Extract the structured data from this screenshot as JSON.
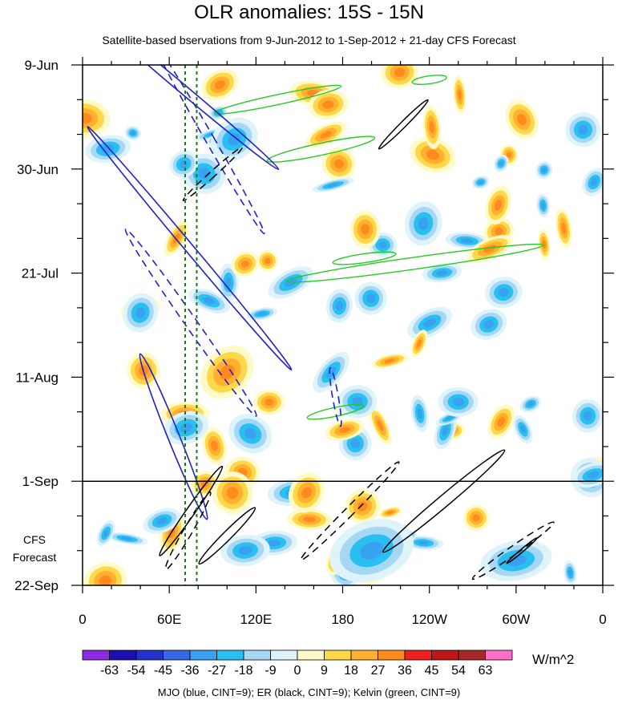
{
  "chart_data": {
    "type": "heatmap",
    "title": "OLR anomalies: 15S - 15N",
    "subtitle": "Satellite-based bservations from 9-Jun-2012 to 1-Sep-2012 + 21-day CFS Forecast",
    "x_tick_labels": [
      "0",
      "60E",
      "120E",
      "180",
      "120W",
      "60W",
      "0"
    ],
    "x_ticks_deg": [
      0,
      60,
      120,
      180,
      240,
      300,
      360
    ],
    "y_tick_labels": [
      "9-Jun",
      "30-Jun",
      "21-Jul",
      "11-Aug",
      "1-Sep",
      "22-Sep"
    ],
    "y_ticks_day": [
      0,
      21,
      42,
      63,
      84,
      105
    ],
    "forecast_start_day": 84,
    "forecast_label": [
      "CFS",
      "Forecast"
    ],
    "colorbar": {
      "levels": [
        "-63",
        "-54",
        "-45",
        "-36",
        "-27",
        "-18",
        "-9",
        "0",
        "9",
        "18",
        "27",
        "36",
        "45",
        "54",
        "63"
      ],
      "colors": [
        "#8a2be2",
        "#1a0fb0",
        "#2233cc",
        "#3a67e6",
        "#3aa0f0",
        "#28c0f0",
        "#a6d8f5",
        "#dff4fa",
        "#fffac8",
        "#ffd84a",
        "#ffb030",
        "#ff8a1e",
        "#ee2020",
        "#c01818",
        "#a82828",
        "#ff6ec8"
      ],
      "units": "W/m^2"
    },
    "contours": {
      "mjo_color": "#2020c8",
      "er_color": "#000000",
      "kelvin_color": "#22cc22",
      "reference_line_color": "#1a7a1a",
      "reference_lines_deg": [
        71,
        79
      ]
    },
    "footer_note": "MJO (blue, CINT=9); ER (black, CINT=9); Kelvin (green, CINT=9)"
  }
}
